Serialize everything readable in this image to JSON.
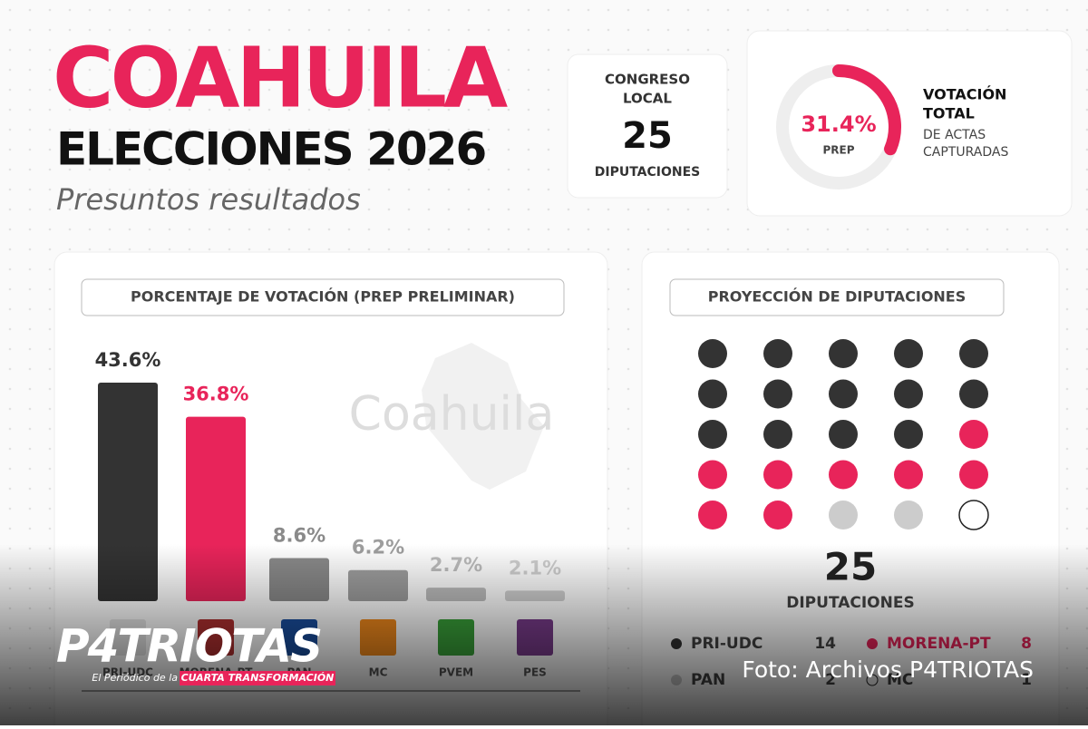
{
  "header": {
    "title": "COAHUILA",
    "subtitle": "ELECCIONES 2026",
    "tagline": "Presuntos resultados"
  },
  "congreso": {
    "label_1": "CONGRESO",
    "label_2": "LOCAL",
    "number": 25,
    "unit": "DIPUTACIONES"
  },
  "votacion": {
    "title_1": "VOTACIÓN",
    "title_2": "TOTAL",
    "desc_1": "DE ACTAS",
    "desc_2": "CAPTURADAS"
  },
  "chart_data": [
    {
      "type": "bar",
      "title": "PORCENTAJE DE VOTACIÓN (PREP PRELIMINAR)",
      "map_label": "Coahuila",
      "categories": [
        "PRI-UDC",
        "MORENA-PT",
        "PAN",
        "MC",
        "PVEM",
        "PES"
      ],
      "values": [
        43.6,
        36.8,
        8.6,
        6.2,
        2.7,
        2.1
      ],
      "value_labels": [
        "43.6%",
        "36.8%",
        "8.6%",
        "6.2%",
        "2.7%",
        "2.1%"
      ],
      "colors": [
        "#333333",
        "#e8245a",
        "#8a8a8a",
        "#9e9e9e",
        "#bdbdbd",
        "#d0d0d0"
      ]
    },
    {
      "type": "donut",
      "value": 31.4,
      "value_label": "31.4%",
      "label": "PREP",
      "color": "#e8245a",
      "max": 100
    },
    {
      "type": "dots",
      "title": "PROYECCIÓN DE DIPUTACIONES",
      "total": 25,
      "total_label": "DIPUTACIONES",
      "series": [
        {
          "name": "PRI-UDC",
          "color": "#333333",
          "values": [
            14
          ]
        },
        {
          "name": "MORENA-PT",
          "color": "#e8245a",
          "values": [
            8
          ]
        },
        {
          "name": "PAN",
          "color": "#cccccc",
          "values": [
            2
          ]
        },
        {
          "name": "MC",
          "color": "#ffffff",
          "values": [
            1
          ]
        }
      ]
    }
  ],
  "watermark": {
    "brand": "P4TRIOTAS",
    "tag_1": "El Periódico de la",
    "tag_2": "CUARTA TRANSFORMACIÓN",
    "credit": "Foto: Archivos P4TRIOTAS"
  }
}
